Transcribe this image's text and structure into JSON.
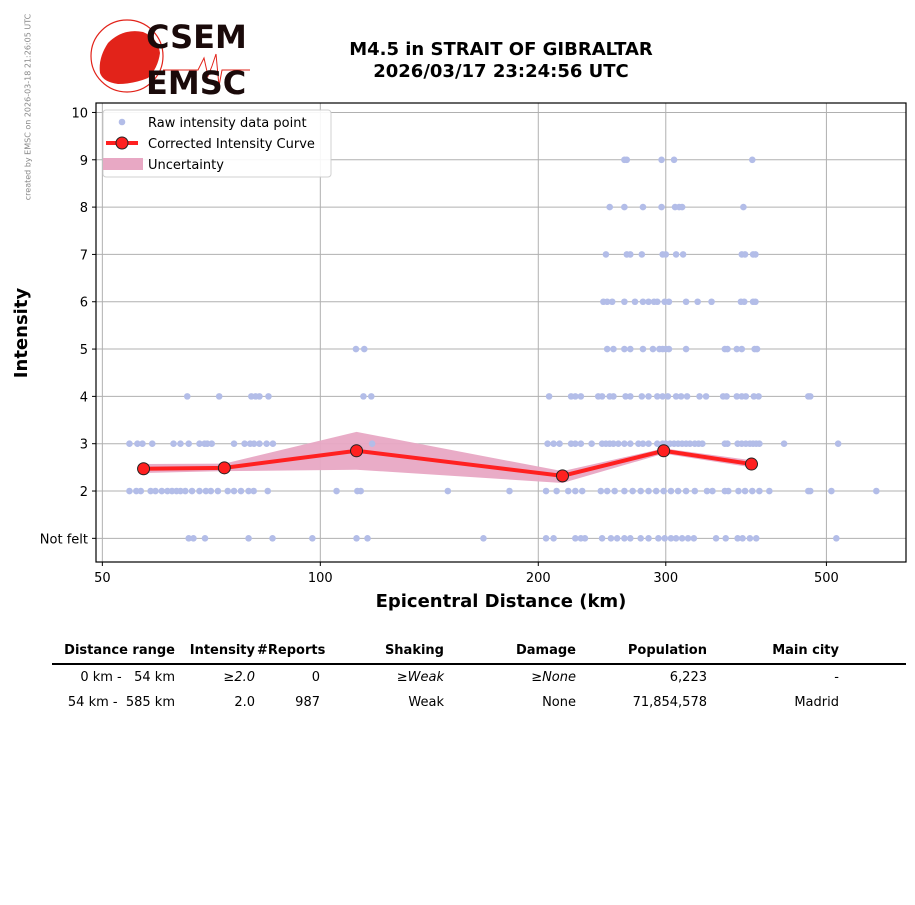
{
  "watermark": "created by EMSC on 2026-03-18 21:26:05 UTC",
  "logo": {
    "top": "CSEM",
    "bottom": "EMSC",
    "color": "#e2231a"
  },
  "title": {
    "line1": "M4.5 in STRAIT OF GIBRALTAR",
    "line2": "2026/03/17 23:24:56 UTC"
  },
  "chart_data": {
    "type": "scatter",
    "xlabel": "Epicentral Distance (km)",
    "ylabel": "Intensity",
    "xscale": "log",
    "xlim": [
      49,
      644
    ],
    "ylim": [
      0.5,
      10.2
    ],
    "xticks": [
      {
        "v": 50,
        "label": "50"
      },
      {
        "v": 100,
        "label": "100"
      },
      {
        "v": 200,
        "label": "200"
      },
      {
        "v": 300,
        "label": "300"
      },
      {
        "v": 500,
        "label": "500"
      }
    ],
    "yticks": [
      {
        "v": 1,
        "label": "Not felt"
      },
      {
        "v": 2,
        "label": "2"
      },
      {
        "v": 3,
        "label": "3"
      },
      {
        "v": 4,
        "label": "4"
      },
      {
        "v": 5,
        "label": "5"
      },
      {
        "v": 6,
        "label": "6"
      },
      {
        "v": 7,
        "label": "7"
      },
      {
        "v": 8,
        "label": "8"
      },
      {
        "v": 9,
        "label": "9"
      },
      {
        "v": 10,
        "label": "10"
      }
    ],
    "grid": true,
    "legend": {
      "placement": "top-left",
      "entries": [
        "Raw intensity data point",
        "Corrected Intensity Curve",
        "Uncertainty"
      ]
    },
    "colors": {
      "raw": "#b3bde8",
      "curve": "#ff2020",
      "marker_edge": "#222222",
      "band": "#e8a8c4"
    },
    "raw_points": [
      {
        "intensity": 9,
        "distances": [
          263,
          265,
          296,
          308,
          395
        ]
      },
      {
        "intensity": 8,
        "distances": [
          251,
          263,
          279,
          296,
          309,
          313,
          316,
          384
        ]
      },
      {
        "intensity": 7,
        "distances": [
          248,
          265,
          268,
          278,
          297,
          300,
          310,
          317,
          382,
          386,
          396,
          399
        ]
      },
      {
        "intensity": 6,
        "distances": [
          246,
          249,
          253,
          263,
          272,
          279,
          284,
          289,
          292,
          299,
          303,
          320,
          332,
          347,
          381,
          385,
          396,
          399
        ]
      },
      {
        "intensity": 5,
        "distances": [
          112,
          115,
          249,
          254,
          263,
          268,
          279,
          288,
          294,
          297,
          300,
          303,
          320,
          362,
          365,
          376,
          382,
          398,
          401
        ]
      },
      {
        "intensity": 4,
        "distances": [
          65.5,
          72.5,
          80.3,
          81.4,
          82.4,
          84.8,
          114.7,
          117.6,
          207,
          222,
          225,
          229,
          242,
          245,
          251,
          254,
          264,
          268,
          278,
          284,
          292,
          297,
          302,
          310,
          315,
          321,
          334,
          341,
          360,
          364,
          376,
          382,
          387,
          397,
          403,
          472,
          475
        ]
      },
      {
        "intensity": 3,
        "distances": [
          54.5,
          55.9,
          56.8,
          58.6,
          62.7,
          64.1,
          65.8,
          68.1,
          69.2,
          69.8,
          70.8,
          76,
          78.6,
          80,
          81,
          82.4,
          84.3,
          86,
          117.9,
          206,
          210,
          214,
          222,
          225,
          229,
          237,
          245,
          248,
          251,
          254,
          258,
          263,
          268,
          275,
          279,
          284,
          292,
          297,
          300,
          304,
          308,
          312,
          316,
          320,
          324,
          329,
          333,
          337,
          362,
          365,
          377,
          382,
          387,
          392,
          396,
          400,
          404,
          437,
          519
        ]
      },
      {
        "intensity": 2,
        "distances": [
          54.5,
          55.7,
          56.5,
          58.3,
          59.2,
          60.4,
          61.5,
          62.4,
          63.3,
          64.1,
          65.1,
          66.5,
          68.1,
          69.5,
          70.6,
          72.2,
          74.5,
          76,
          77.7,
          79.6,
          80.9,
          84.6,
          105.3,
          112.5,
          113.7,
          150,
          182.5,
          205,
          212,
          220,
          225,
          230,
          244,
          249,
          255,
          263,
          270,
          277,
          284,
          291,
          298,
          305,
          312,
          320,
          329,
          342,
          348,
          362,
          366,
          378,
          386,
          395,
          404,
          417,
          472,
          475,
          508,
          586
        ]
      },
      {
        "intensity": 1,
        "distances": [
          65.8,
          66.8,
          69.3,
          79.6,
          85.9,
          97.5,
          112.2,
          116.2,
          168,
          205,
          210,
          225,
          229,
          232,
          245,
          252,
          257,
          263,
          268,
          277,
          284,
          293,
          299,
          305,
          310,
          316,
          322,
          328,
          352,
          363,
          377,
          383,
          392,
          400,
          516
        ]
      }
    ],
    "curve": {
      "x": [
        57.0,
        73.7,
        112.2,
        216,
        298,
        394
      ],
      "y": [
        2.47,
        2.49,
        2.85,
        2.32,
        2.85,
        2.57
      ]
    },
    "uncertainty": {
      "x": [
        57.0,
        73.7,
        112.2,
        216,
        298,
        394
      ],
      "upper": [
        2.57,
        2.58,
        3.25,
        2.42,
        2.9,
        2.65
      ],
      "lower": [
        2.38,
        2.42,
        2.45,
        2.17,
        2.79,
        2.5
      ]
    }
  },
  "table": {
    "headers": [
      "Distance range",
      "Intensity",
      "#Reports",
      "Shaking",
      "Damage",
      "Population",
      "Main city"
    ],
    "rows": [
      [
        "0 km -   54 km",
        "≥2.0",
        "0",
        "≥Weak",
        "≥None",
        "6,223",
        "-"
      ],
      [
        "54 km -  585 km",
        "2.0",
        "987",
        "Weak",
        "None",
        "71,854,578",
        "Madrid"
      ]
    ]
  }
}
